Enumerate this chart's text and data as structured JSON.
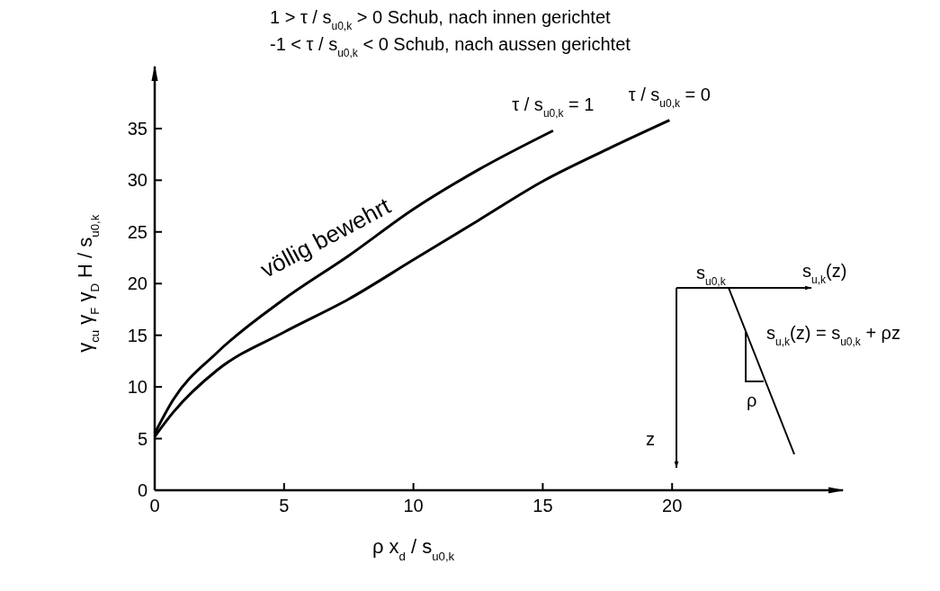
{
  "chart_data": {
    "type": "line",
    "title": "1 > τ / s$_{u0,k}$ > 0  Schub, nach innen gerichtet",
    "subtitle": "-1 < τ / s$_{u0,k}$ < 0  Schub, nach aussen gerichtet",
    "xlabel": "ρ x$_{d}$ / s$_{u0,k}$",
    "ylabel": "γ$_{cu}$ γ$_{F}$ γ$_{D}$ H / s$_{u0,k}$",
    "xlim": [
      0,
      26.6
    ],
    "ylim": [
      0,
      41
    ],
    "xticks": [
      0,
      5,
      10,
      15,
      20
    ],
    "yticks": [
      0,
      5,
      10,
      15,
      20,
      25,
      30,
      35
    ],
    "grid": false,
    "marker": "none",
    "line_style": "solid",
    "series": [
      {
        "name": "τ / s$_{u0,k}$ = 1",
        "color": "#000000",
        "x": [
          0,
          0.7,
          2.4,
          5,
          7.5,
          10,
          12.5,
          15.4
        ],
        "values": [
          5.5,
          8.7,
          13.3,
          18.5,
          22.7,
          27.2,
          31.0,
          34.8
        ]
      },
      {
        "name": "τ / s$_{u0,k}$ = 0",
        "color": "#000000",
        "x": [
          0,
          0.7,
          2.4,
          5,
          7.5,
          10,
          12.5,
          15,
          17.5,
          19.9
        ],
        "values": [
          5.2,
          7.5,
          11.6,
          15.3,
          18.5,
          22.3,
          26.1,
          29.9,
          33.0,
          35.8
        ]
      }
    ],
    "annotations": [
      "völlig bewehrt",
      "s$_{u0,k}$",
      "s$_{u,k}$(z)",
      "s$_{u,k}$(z) = s$_{u0,k}$ + ρz",
      "ρ",
      "z"
    ]
  }
}
